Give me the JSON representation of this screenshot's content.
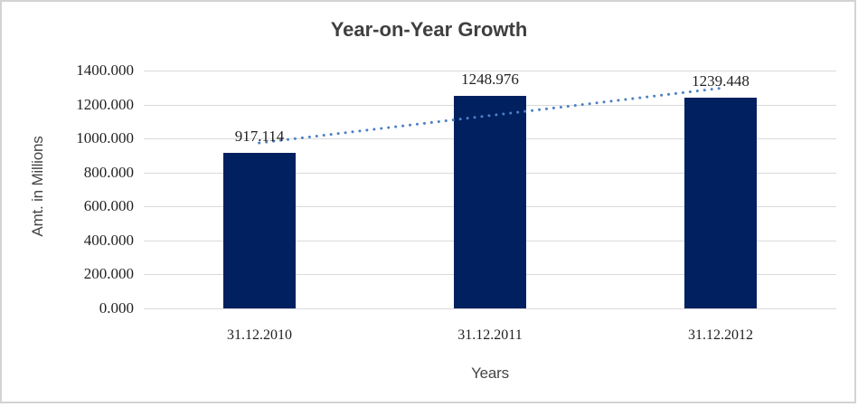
{
  "chart_data": {
    "type": "bar",
    "title": "Year-on-Year Growth",
    "xlabel": "Years",
    "ylabel": "Amt. in Millions",
    "categories": [
      "31.12.2010",
      "31.12.2011",
      "31.12.2012"
    ],
    "values": [
      917.114,
      1248.976,
      1239.448
    ],
    "data_labels": [
      "917.114",
      "1248.976",
      "1239.448"
    ],
    "y_ticks": [
      "0.000",
      "200.000",
      "400.000",
      "600.000",
      "800.000",
      "1000.000",
      "1200.000",
      "1400.000"
    ],
    "y_tick_values": [
      0,
      200,
      400,
      600,
      800,
      1000,
      1200,
      1400
    ],
    "ylim": [
      0,
      1400
    ],
    "grid": "horizontal",
    "legend": "none",
    "trendline": {
      "type": "linear",
      "style": "dotted"
    },
    "colors": {
      "bar": "#002060",
      "trendline": "#4c80c4",
      "gridline": "#dadada",
      "border": "#d3d3d3",
      "title_text": "#3f3f3f",
      "axis_text": "#1f1f1f",
      "axis_title_text": "#454545"
    }
  }
}
